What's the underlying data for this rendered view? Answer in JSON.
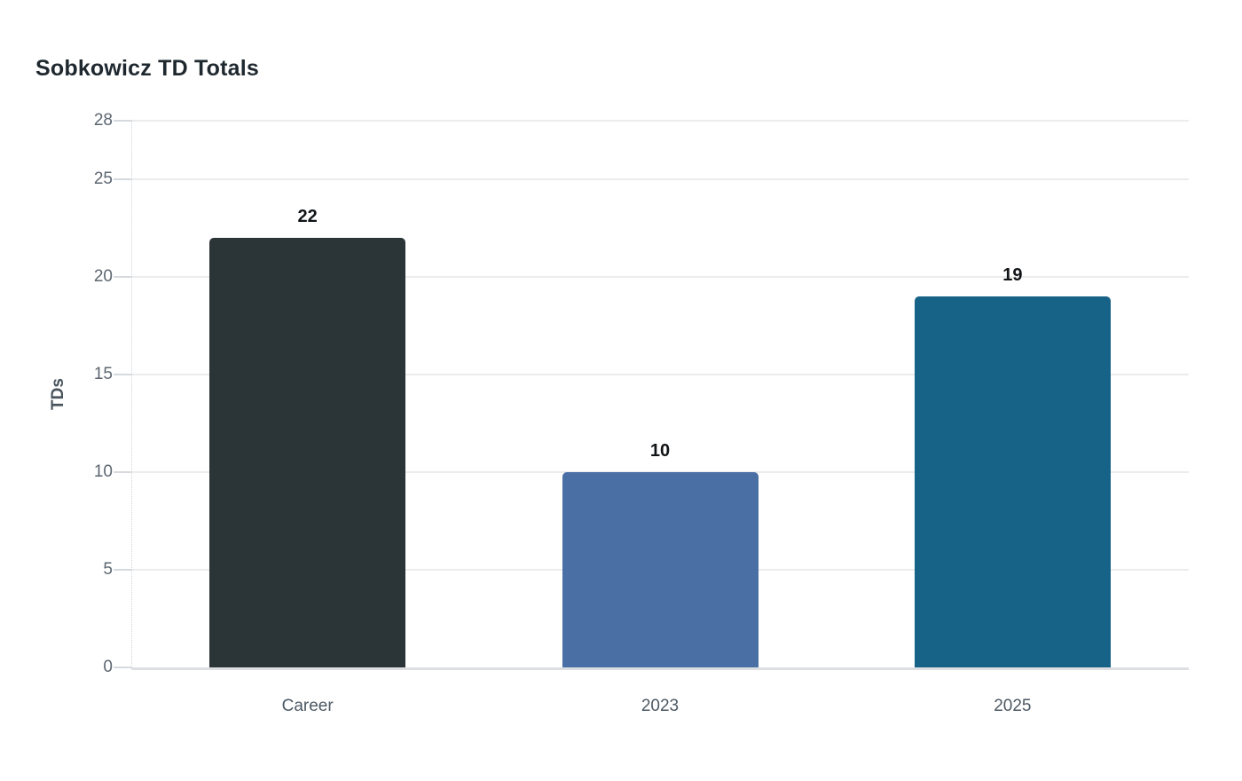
{
  "page": {
    "background": "#ffffff"
  },
  "chart_data": {
    "type": "bar",
    "title": "Sobkowicz TD Totals",
    "categories": [
      "Career",
      "2023",
      "2025"
    ],
    "values": [
      22,
      10,
      19
    ],
    "value_labels": [
      "22",
      "10",
      "19"
    ],
    "bar_colors": [
      "#2b3436",
      "#4a6fa5",
      "#176287"
    ],
    "xlabel": "",
    "ylabel": "TDs",
    "ylim": [
      0,
      28
    ],
    "yticks": [
      0,
      5,
      10,
      15,
      20,
      25,
      28
    ],
    "grid": "horizontal-only",
    "legend": "none",
    "colors": {
      "title": "#1e282e",
      "axis_title": "#49545c",
      "y_tick_label": "#5c6670",
      "x_tick_label": "#4d5964",
      "value_label": "#111417",
      "gridline": "#ececec",
      "baseline": "#dcdee1",
      "tick_mark": "#d6dade",
      "axis_dotted_line": "#d0d5d9"
    }
  }
}
